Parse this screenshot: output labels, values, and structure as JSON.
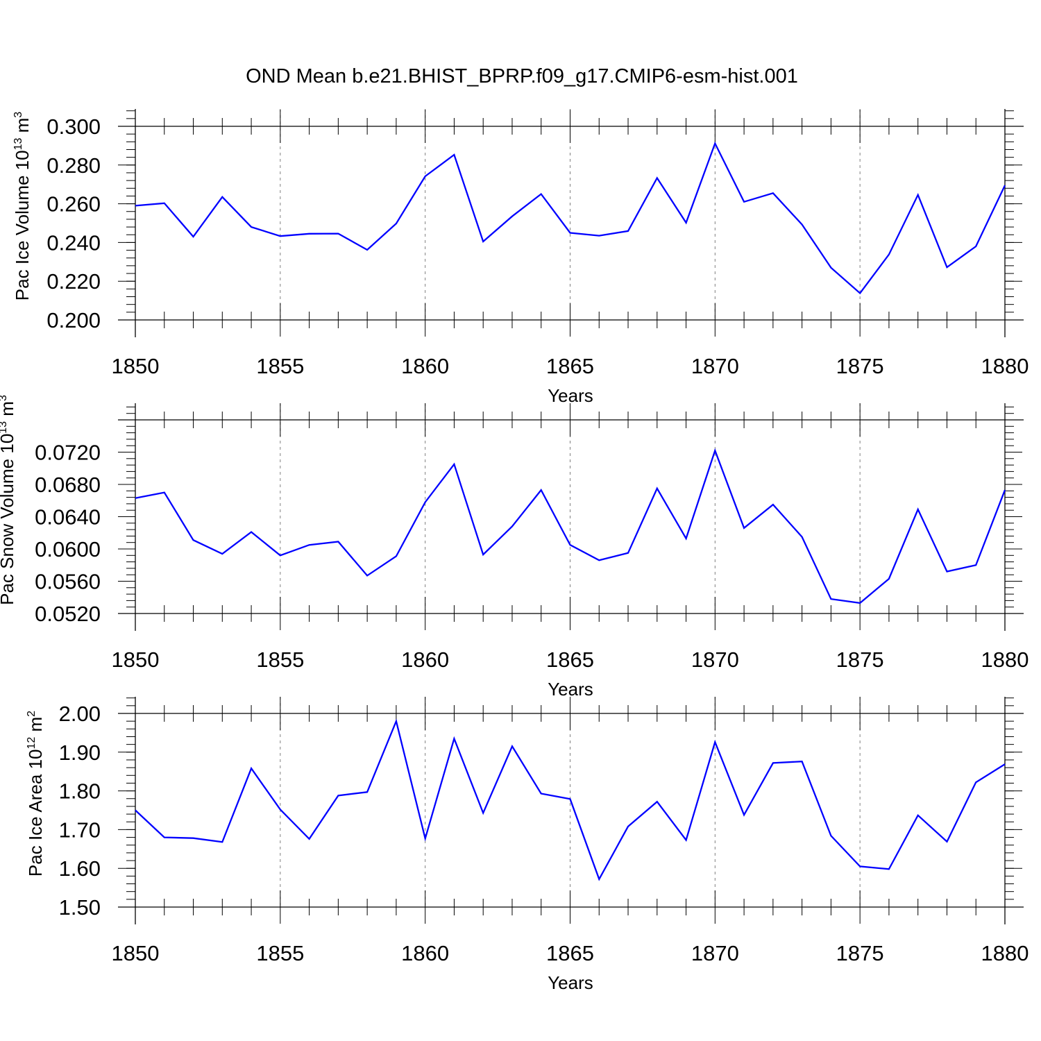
{
  "title": "OND Mean b.e21.BHIST_BPRP.f09_g17.CMIP6-esm-hist.001",
  "chart_data": [
    {
      "type": "line",
      "xlabel": "Years",
      "ylabel": {
        "text": "Pac Ice Volume 10",
        "sup": "13",
        "unit": " m",
        "unit_sup": "3"
      },
      "xlim": [
        1850,
        1880
      ],
      "ylim": [
        0.2,
        0.3
      ],
      "xticks": [
        1850,
        1855,
        1860,
        1865,
        1870,
        1875,
        1880
      ],
      "xtick_labels": [
        "1850",
        "1855",
        "1860",
        "1865",
        "1870",
        "1875",
        "1880"
      ],
      "yticks": [
        0.2,
        0.22,
        0.24,
        0.26,
        0.28,
        0.3
      ],
      "ytick_labels": [
        "0.200",
        "0.220",
        "0.240",
        "0.260",
        "0.280",
        "0.300"
      ],
      "x_gridlines": [
        1855,
        1860,
        1865,
        1870,
        1875
      ],
      "color": "#0000ff",
      "x": [
        1850,
        1851,
        1852,
        1853,
        1854,
        1855,
        1856,
        1857,
        1858,
        1859,
        1860,
        1861,
        1862,
        1863,
        1864,
        1865,
        1866,
        1867,
        1868,
        1869,
        1870,
        1871,
        1872,
        1873,
        1874,
        1875,
        1876,
        1877,
        1878,
        1879,
        1880
      ],
      "y": [
        0.259,
        0.2603,
        0.243,
        0.2635,
        0.248,
        0.2433,
        0.2445,
        0.2446,
        0.2362,
        0.2498,
        0.2742,
        0.2853,
        0.2405,
        0.2535,
        0.265,
        0.245,
        0.2435,
        0.2459,
        0.2733,
        0.2502,
        0.2912,
        0.261,
        0.2655,
        0.2493,
        0.227,
        0.2138,
        0.2338,
        0.2646,
        0.2272,
        0.238,
        0.2695
      ]
    },
    {
      "type": "line",
      "xlabel": "Years",
      "ylabel": {
        "text": "Pac Snow Volume 10",
        "sup": "13",
        "unit": " m",
        "unit_sup": "3"
      },
      "xlim": [
        1850,
        1880
      ],
      "ylim": [
        0.052,
        0.076
      ],
      "xticks": [
        1850,
        1855,
        1860,
        1865,
        1870,
        1875,
        1880
      ],
      "xtick_labels": [
        "1850",
        "1855",
        "1860",
        "1865",
        "1870",
        "1875",
        "1880"
      ],
      "yticks": [
        0.052,
        0.056,
        0.06,
        0.064,
        0.068,
        0.072
      ],
      "ytick_labels": [
        "0.0520",
        "0.0560",
        "0.0600",
        "0.0640",
        "0.0680",
        "0.0720"
      ],
      "x_gridlines": [
        1855,
        1860,
        1865,
        1870,
        1875
      ],
      "color": "#0000ff",
      "x": [
        1850,
        1851,
        1852,
        1853,
        1854,
        1855,
        1856,
        1857,
        1858,
        1859,
        1860,
        1861,
        1862,
        1863,
        1864,
        1865,
        1866,
        1867,
        1868,
        1869,
        1870,
        1871,
        1872,
        1873,
        1874,
        1875,
        1876,
        1877,
        1878,
        1879,
        1880
      ],
      "y": [
        0.0663,
        0.067,
        0.0611,
        0.0594,
        0.0621,
        0.0592,
        0.0605,
        0.0609,
        0.0567,
        0.0591,
        0.0658,
        0.0705,
        0.0593,
        0.0628,
        0.0673,
        0.0605,
        0.0586,
        0.0595,
        0.0675,
        0.0613,
        0.0722,
        0.0626,
        0.0655,
        0.0615,
        0.0538,
        0.0533,
        0.0563,
        0.0649,
        0.0572,
        0.058,
        0.0673
      ]
    },
    {
      "type": "line",
      "xlabel": "Years",
      "ylabel": {
        "text": "Pac Ice Area 10",
        "sup": "12",
        "unit": " m",
        "unit_sup": "2"
      },
      "xlim": [
        1850,
        1880
      ],
      "ylim": [
        1.5,
        2.0
      ],
      "xticks": [
        1850,
        1855,
        1860,
        1865,
        1870,
        1875,
        1880
      ],
      "xtick_labels": [
        "1850",
        "1855",
        "1860",
        "1865",
        "1870",
        "1875",
        "1880"
      ],
      "yticks": [
        1.5,
        1.6,
        1.7,
        1.8,
        1.9,
        2.0
      ],
      "ytick_labels": [
        "1.50",
        "1.60",
        "1.70",
        "1.80",
        "1.90",
        "2.00"
      ],
      "x_gridlines": [
        1855,
        1860,
        1865,
        1870,
        1875
      ],
      "color": "#0000ff",
      "x": [
        1850,
        1851,
        1852,
        1853,
        1854,
        1855,
        1856,
        1857,
        1858,
        1859,
        1860,
        1861,
        1862,
        1863,
        1864,
        1865,
        1866,
        1867,
        1868,
        1869,
        1870,
        1871,
        1872,
        1873,
        1874,
        1875,
        1876,
        1877,
        1878,
        1879,
        1880
      ],
      "y": [
        1.75,
        1.68,
        1.678,
        1.668,
        1.858,
        1.752,
        1.676,
        1.788,
        1.797,
        1.98,
        1.677,
        1.935,
        1.743,
        1.915,
        1.793,
        1.779,
        1.572,
        1.708,
        1.772,
        1.673,
        1.926,
        1.738,
        1.872,
        1.876,
        1.684,
        1.605,
        1.598,
        1.737,
        1.669,
        1.822,
        1.869
      ]
    }
  ]
}
